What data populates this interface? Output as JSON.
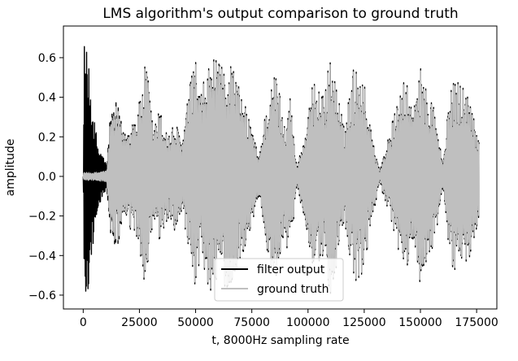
{
  "chart_data": {
    "type": "line",
    "title": "LMS algorithm's output comparison to ground truth",
    "xlabel": "t, 8000Hz sampling rate",
    "ylabel": "amplitude",
    "xlim": [
      -8800,
      184000
    ],
    "ylim": [
      -0.67,
      0.76
    ],
    "xticks": [
      0,
      25000,
      50000,
      75000,
      100000,
      125000,
      150000,
      175000
    ],
    "yticks": [
      -0.6,
      -0.4,
      -0.2,
      0.0,
      0.2,
      0.4,
      0.6
    ],
    "ytick_labels": [
      "−0.6",
      "−0.4",
      "−0.2",
      "0.0",
      "0.2",
      "0.4",
      "0.6"
    ],
    "grid": false,
    "legend_position": "bottom-center",
    "x_range": [
      0,
      176000
    ],
    "series": [
      {
        "name": "filter output",
        "color": "#000000",
        "description": "Initially large transient (up to about ±0.69) decaying over first ~10000 samples, then tracks ground truth closely",
        "envelope": [
          [
            0,
            0.0
          ],
          [
            500,
            0.69
          ],
          [
            1500,
            0.64
          ],
          [
            3000,
            0.5
          ],
          [
            5000,
            0.28
          ],
          [
            7000,
            0.15
          ],
          [
            9000,
            0.1
          ],
          [
            10500,
            0.06
          ],
          [
            12000,
            0.32
          ],
          [
            15000,
            0.38
          ],
          [
            18000,
            0.22
          ],
          [
            22000,
            0.3
          ],
          [
            25000,
            0.38
          ],
          [
            28000,
            0.6
          ],
          [
            31000,
            0.26
          ],
          [
            34000,
            0.34
          ],
          [
            38000,
            0.22
          ],
          [
            41000,
            0.28
          ],
          [
            44000,
            0.18
          ],
          [
            47000,
            0.44
          ],
          [
            50000,
            0.62
          ],
          [
            52000,
            0.4
          ],
          [
            55000,
            0.55
          ],
          [
            58000,
            0.6
          ],
          [
            62000,
            0.55
          ],
          [
            66000,
            0.6
          ],
          [
            70000,
            0.42
          ],
          [
            74000,
            0.3
          ],
          [
            78000,
            0.1
          ],
          [
            82000,
            0.4
          ],
          [
            86000,
            0.55
          ],
          [
            89000,
            0.3
          ],
          [
            92000,
            0.42
          ],
          [
            95000,
            0.05
          ],
          [
            100000,
            0.3
          ],
          [
            103000,
            0.55
          ],
          [
            106000,
            0.4
          ],
          [
            110000,
            0.6
          ],
          [
            113000,
            0.45
          ],
          [
            116000,
            0.25
          ],
          [
            120000,
            0.55
          ],
          [
            124000,
            0.55
          ],
          [
            128000,
            0.25
          ],
          [
            132000,
            0.03
          ],
          [
            136000,
            0.22
          ],
          [
            140000,
            0.38
          ],
          [
            143000,
            0.5
          ],
          [
            147000,
            0.35
          ],
          [
            150000,
            0.55
          ],
          [
            153000,
            0.43
          ],
          [
            156000,
            0.38
          ],
          [
            158000,
            0.22
          ],
          [
            160000,
            0.06
          ],
          [
            163000,
            0.42
          ],
          [
            166000,
            0.52
          ],
          [
            170000,
            0.45
          ],
          [
            173000,
            0.38
          ],
          [
            176000,
            0.2
          ]
        ]
      },
      {
        "name": "ground truth",
        "color": "#bfbfbf",
        "description": "Speech-like signal, amplitude envelope between about ±0.05 and ±0.66",
        "envelope": [
          [
            0,
            0.02
          ],
          [
            5000,
            0.02
          ],
          [
            10500,
            0.03
          ],
          [
            12000,
            0.3
          ],
          [
            15000,
            0.36
          ],
          [
            18000,
            0.21
          ],
          [
            22000,
            0.29
          ],
          [
            25000,
            0.37
          ],
          [
            28000,
            0.59
          ],
          [
            31000,
            0.25
          ],
          [
            34000,
            0.33
          ],
          [
            38000,
            0.21
          ],
          [
            41000,
            0.27
          ],
          [
            44000,
            0.17
          ],
          [
            47000,
            0.43
          ],
          [
            50000,
            0.61
          ],
          [
            52000,
            0.39
          ],
          [
            55000,
            0.54
          ],
          [
            58000,
            0.59
          ],
          [
            62000,
            0.54
          ],
          [
            66000,
            0.59
          ],
          [
            70000,
            0.41
          ],
          [
            74000,
            0.29
          ],
          [
            78000,
            0.09
          ],
          [
            82000,
            0.39
          ],
          [
            86000,
            0.54
          ],
          [
            89000,
            0.29
          ],
          [
            92000,
            0.41
          ],
          [
            95000,
            0.04
          ],
          [
            100000,
            0.29
          ],
          [
            103000,
            0.54
          ],
          [
            106000,
            0.39
          ],
          [
            110000,
            0.59
          ],
          [
            113000,
            0.44
          ],
          [
            116000,
            0.24
          ],
          [
            120000,
            0.54
          ],
          [
            124000,
            0.54
          ],
          [
            128000,
            0.24
          ],
          [
            132000,
            0.02
          ],
          [
            136000,
            0.21
          ],
          [
            140000,
            0.37
          ],
          [
            143000,
            0.49
          ],
          [
            147000,
            0.34
          ],
          [
            150000,
            0.54
          ],
          [
            153000,
            0.42
          ],
          [
            156000,
            0.37
          ],
          [
            158000,
            0.21
          ],
          [
            160000,
            0.05
          ],
          [
            163000,
            0.41
          ],
          [
            166000,
            0.51
          ],
          [
            170000,
            0.44
          ],
          [
            173000,
            0.37
          ],
          [
            176000,
            0.19
          ]
        ]
      }
    ]
  }
}
